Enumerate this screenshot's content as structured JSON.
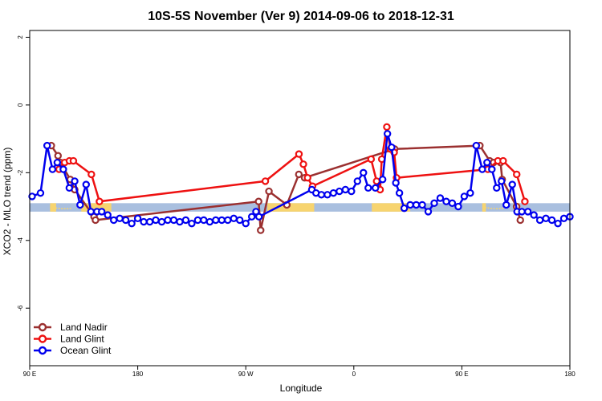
{
  "chart_data": {
    "type": "line",
    "title": "10S-5S November (Ver 9)   2014-09-06 to 2018-12-31",
    "xlabel": "Longitude",
    "ylabel": "XCO2 - MLO trend (ppm)",
    "xlim": [
      0,
      450
    ],
    "ylim": [
      -7.7,
      2.2
    ],
    "yticks": [
      {
        "value": 2,
        "label": "2"
      },
      {
        "value": 0,
        "label": "0"
      },
      {
        "value": -2,
        "label": "-2"
      },
      {
        "value": -4,
        "label": "-4"
      },
      {
        "value": -6,
        "label": "-6"
      }
    ],
    "xticks": [
      {
        "value": 0,
        "label": "90 E"
      },
      {
        "value": 90,
        "label": "180"
      },
      {
        "value": 180,
        "label": "90 W"
      },
      {
        "value": 270,
        "label": "0"
      },
      {
        "value": 360,
        "label": "90 E"
      },
      {
        "value": 450,
        "label": "180"
      }
    ],
    "legend_position": "bottom-left",
    "band": {
      "y_top": -2.9,
      "y_bottom": -3.15,
      "colors": {
        "ocean": "#a9bfdf",
        "land": "#f7d46f"
      },
      "land_segments": [
        [
          17,
          22
        ],
        [
          43,
          68
        ],
        [
          198,
          237
        ],
        [
          285,
          317
        ],
        [
          377,
          380
        ],
        [
          403,
          408
        ]
      ],
      "coast_specks": [
        [
          17,
          35
        ],
        [
          377,
          395
        ]
      ]
    },
    "series": [
      {
        "name": "Land Nadir",
        "color": "#9b3030",
        "points": [
          [
            18,
            -1.2
          ],
          [
            23.6,
            -1.5
          ],
          [
            25.7,
            -1.7
          ],
          [
            33.8,
            -2.2
          ],
          [
            37.5,
            -2.5
          ],
          [
            53.6,
            -3.3
          ],
          [
            54.8,
            -3.4
          ],
          [
            190.7,
            -2.85
          ],
          [
            192.4,
            -3.7
          ],
          [
            199.3,
            -2.55
          ],
          [
            214.2,
            -2.95
          ],
          [
            224.2,
            -2.05
          ],
          [
            229,
            -2.15
          ],
          [
            304,
            -1.3
          ],
          [
            375,
            -1.2
          ],
          [
            383.2,
            -1.65
          ],
          [
            386.4,
            -1.7
          ],
          [
            392.2,
            -1.7
          ],
          [
            393.6,
            -2.2
          ],
          [
            405.6,
            -3.0
          ],
          [
            408.7,
            -3.4
          ]
        ]
      },
      {
        "name": "Land Glint",
        "color": "#ee1111",
        "points": [
          [
            24.5,
            -1.9
          ],
          [
            29.1,
            -1.7
          ],
          [
            33.1,
            -1.65
          ],
          [
            36.4,
            -1.65
          ],
          [
            51.4,
            -2.05
          ],
          [
            58.1,
            -2.85
          ],
          [
            196.3,
            -2.25
          ],
          [
            224.3,
            -1.45
          ],
          [
            228,
            -1.75
          ],
          [
            231.5,
            -2.15
          ],
          [
            235.6,
            -2.4
          ],
          [
            284.4,
            -1.6
          ],
          [
            289,
            -2.25
          ],
          [
            291.9,
            -2.5
          ],
          [
            293.3,
            -1.6
          ],
          [
            297.5,
            -0.65
          ],
          [
            300.5,
            -1.3
          ],
          [
            303.6,
            -1.4
          ],
          [
            305.6,
            -2.15
          ],
          [
            381.6,
            -1.9
          ],
          [
            390,
            -1.65
          ],
          [
            394.4,
            -1.65
          ],
          [
            405.7,
            -2.05
          ],
          [
            412.5,
            -2.85
          ]
        ]
      },
      {
        "name": "Ocean Glint",
        "color": "#0000ee",
        "points": [
          [
            2,
            -2.7
          ],
          [
            9,
            -2.6
          ],
          [
            14.5,
            -1.2
          ],
          [
            19,
            -1.9
          ],
          [
            23,
            -1.7
          ],
          [
            28,
            -1.9
          ],
          [
            33,
            -2.45
          ],
          [
            37.5,
            -2.25
          ],
          [
            42,
            -2.95
          ],
          [
            47,
            -2.35
          ],
          [
            51,
            -3.15
          ],
          [
            56,
            -3.15
          ],
          [
            60,
            -3.15
          ],
          [
            65,
            -3.25
          ],
          [
            70,
            -3.4
          ],
          [
            75,
            -3.35
          ],
          [
            80,
            -3.4
          ],
          [
            85,
            -3.5
          ],
          [
            90,
            -3.35
          ],
          [
            95,
            -3.45
          ],
          [
            100,
            -3.45
          ],
          [
            105,
            -3.4
          ],
          [
            110,
            -3.45
          ],
          [
            115,
            -3.4
          ],
          [
            120,
            -3.4
          ],
          [
            125,
            -3.45
          ],
          [
            130,
            -3.4
          ],
          [
            135,
            -3.5
          ],
          [
            140,
            -3.4
          ],
          [
            145,
            -3.4
          ],
          [
            150,
            -3.45
          ],
          [
            155,
            -3.4
          ],
          [
            160,
            -3.4
          ],
          [
            165,
            -3.4
          ],
          [
            170,
            -3.35
          ],
          [
            175,
            -3.4
          ],
          [
            180,
            -3.5
          ],
          [
            185,
            -3.3
          ],
          [
            188.5,
            -3.15
          ],
          [
            191,
            -3.3
          ],
          [
            235,
            -2.5
          ],
          [
            238.5,
            -2.6
          ],
          [
            243,
            -2.65
          ],
          [
            248,
            -2.65
          ],
          [
            253,
            -2.6
          ],
          [
            258,
            -2.55
          ],
          [
            263,
            -2.5
          ],
          [
            268,
            -2.55
          ],
          [
            273,
            -2.25
          ],
          [
            278,
            -2.0
          ],
          [
            282,
            -2.45
          ],
          [
            288,
            -2.45
          ],
          [
            294,
            -2.2
          ],
          [
            298,
            -0.85
          ],
          [
            301.5,
            -1.25
          ],
          [
            305,
            -2.3
          ],
          [
            308,
            -2.6
          ],
          [
            312,
            -3.05
          ],
          [
            317,
            -2.95
          ],
          [
            322,
            -2.95
          ],
          [
            327,
            -2.95
          ],
          [
            332,
            -3.15
          ],
          [
            337,
            -2.9
          ],
          [
            342,
            -2.75
          ],
          [
            347,
            -2.85
          ],
          [
            352,
            -2.9
          ],
          [
            357,
            -3.0
          ],
          [
            362,
            -2.7
          ],
          [
            367,
            -2.6
          ],
          [
            372,
            -1.2
          ],
          [
            377,
            -1.9
          ],
          [
            381,
            -1.7
          ],
          [
            385,
            -1.9
          ],
          [
            389,
            -2.45
          ],
          [
            393,
            -2.25
          ],
          [
            397,
            -2.95
          ],
          [
            402,
            -2.35
          ],
          [
            406,
            -3.15
          ],
          [
            410,
            -3.15
          ],
          [
            415,
            -3.15
          ],
          [
            420,
            -3.25
          ],
          [
            425,
            -3.4
          ],
          [
            430,
            -3.35
          ],
          [
            435,
            -3.4
          ],
          [
            440,
            -3.5
          ],
          [
            445,
            -3.35
          ],
          [
            450,
            -3.3
          ]
        ]
      }
    ]
  }
}
